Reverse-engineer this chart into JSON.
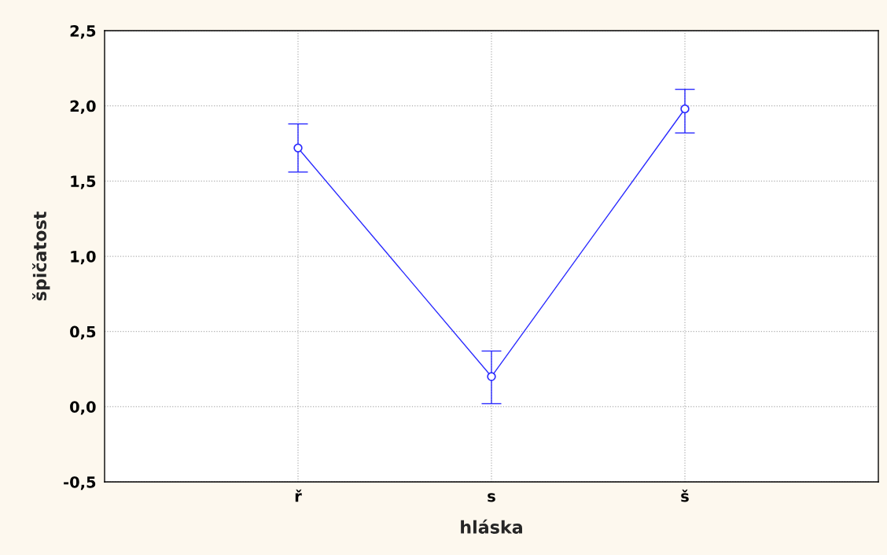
{
  "chart_data": {
    "type": "line",
    "xlabel": "hláska",
    "ylabel": "špičatost",
    "categories": [
      "ř",
      "s",
      "š"
    ],
    "series": [
      {
        "color": "#2b2bff",
        "values": [
          1.72,
          0.2,
          1.98
        ],
        "errors": [
          [
            1.56,
            1.88
          ],
          [
            0.02,
            0.37
          ],
          [
            1.82,
            2.11
          ]
        ]
      }
    ],
    "ylim": [
      -0.5,
      2.5
    ],
    "yticks": [
      {
        "value": -0.5,
        "label": "-0,5"
      },
      {
        "value": 0,
        "label": "0,0"
      },
      {
        "value": 0.5,
        "label": "0,5"
      },
      {
        "value": 1,
        "label": "1,0"
      },
      {
        "value": 1.5,
        "label": "1,5"
      },
      {
        "value": 2,
        "label": "2,0"
      },
      {
        "value": 2.5,
        "label": "2,5"
      }
    ],
    "grid": true,
    "marker": "circle",
    "line_style": "solid"
  }
}
